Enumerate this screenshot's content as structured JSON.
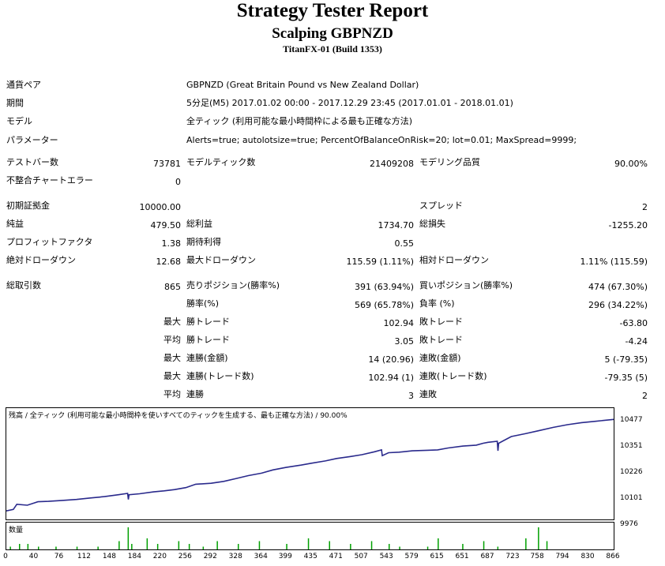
{
  "report": {
    "title": "Strategy Tester Report",
    "subtitle": "Scalping GBPNZD",
    "server": "TitanFX-01 (Build 1353)"
  },
  "info": {
    "symbol_label": "通貨ペア",
    "symbol_value": "GBPNZD (Great Britain Pound vs New Zealand Dollar)",
    "period_label": "期間",
    "period_value": "5分足(M5) 2017.01.02 00:00 - 2017.12.29 23:45 (2017.01.01 - 2018.01.01)",
    "model_label": "モデル",
    "model_value": "全ティック (利用可能な最小時間枠による最も正確な方法)",
    "params_label": "パラメーター",
    "params_value": "Alerts=true; autolotsize=true; PercentOfBalanceOnRisk=20; lot=0.01; MaxSpread=9999;"
  },
  "stats": {
    "bars_label": "テストバー数",
    "bars_value": "73781",
    "ticks_label": "モデルティック数",
    "ticks_value": "21409208",
    "quality_label": "モデリング品質",
    "quality_value": "90.00%",
    "mismatch_label": "不整合チャートエラー",
    "mismatch_value": "0",
    "deposit_label": "初期証拠金",
    "deposit_value": "10000.00",
    "spread_label": "スプレッド",
    "spread_value": "2",
    "net_label": "純益",
    "net_value": "479.50",
    "gross_profit_label": "総利益",
    "gross_profit_value": "1734.70",
    "gross_loss_label": "総損失",
    "gross_loss_value": "-1255.20",
    "pf_label": "プロフィットファクタ",
    "pf_value": "1.38",
    "expected_label": "期待利得",
    "expected_value": "0.55",
    "abs_dd_label": "絶対ドローダウン",
    "abs_dd_value": "12.68",
    "max_dd_label": "最大ドローダウン",
    "max_dd_value": "115.59 (1.11%)",
    "rel_dd_label": "相対ドローダウン",
    "rel_dd_value": "1.11% (115.59)",
    "total_label": "総取引数",
    "total_value": "865",
    "short_label": "売りポジション(勝率%)",
    "short_value": "391 (63.94%)",
    "long_label": "買いポジション(勝率%)",
    "long_value": "474 (67.30%)",
    "win_label": "勝率(%)",
    "win_value": "569 (65.78%)",
    "loss_label": "負率 (%)",
    "loss_value": "296 (34.22%)",
    "max_label": "最大",
    "avg_label": "平均",
    "largest_win_label": "勝トレード",
    "largest_win_value": "102.94",
    "largest_loss_label": "敗トレード",
    "largest_loss_value": "-63.80",
    "avg_win_label": "勝トレード",
    "avg_win_value": "3.05",
    "avg_loss_label": "敗トレード",
    "avg_loss_value": "-4.24",
    "max_cons_win_label": "連勝(金額)",
    "max_cons_win_value": "14 (20.96)",
    "max_cons_loss_label": "連敗(金額)",
    "max_cons_loss_value": "5 (-79.35)",
    "max_cons_profit_label": "連勝(トレード数)",
    "max_cons_profit_value": "102.94 (1)",
    "max_cons_lossamt_label": "連敗(トレード数)",
    "max_cons_lossamt_value": "-79.35 (5)",
    "avg_cons_win_label": "連勝",
    "avg_cons_win_value": "3",
    "avg_cons_loss_label": "連敗",
    "avg_cons_loss_value": "2"
  },
  "graph": {
    "caption": "残高 / 全ティック (利用可能な最小時間枠を使いすべてのティックを生成する、最も正確な方法) / 90.00%",
    "volume_caption": "数量",
    "line_color": "#2a2a8c",
    "volume_color": "#00a000"
  },
  "chart_data": {
    "type": "line",
    "y_ticks": [
      "10477",
      "10351",
      "10226",
      "10101",
      "9976"
    ],
    "x_ticks": [
      "0",
      "40",
      "76",
      "112",
      "148",
      "184",
      "220",
      "256",
      "292",
      "328",
      "364",
      "399",
      "435",
      "471",
      "507",
      "543",
      "579",
      "615",
      "651",
      "687",
      "723",
      "758",
      "794",
      "830",
      "866"
    ],
    "ylim": [
      9976,
      10477
    ],
    "xlim": [
      0,
      866
    ],
    "x": [
      0,
      10,
      15,
      30,
      45,
      60,
      80,
      100,
      120,
      140,
      160,
      173,
      174,
      175,
      190,
      210,
      225,
      240,
      256,
      270,
      292,
      310,
      328,
      345,
      364,
      380,
      399,
      420,
      435,
      455,
      471,
      490,
      507,
      525,
      535,
      536,
      545,
      560,
      579,
      600,
      615,
      630,
      651,
      670,
      680,
      687,
      700,
      701,
      702,
      720,
      740,
      758,
      780,
      800,
      820,
      840,
      866
    ],
    "y": [
      10000,
      10008,
      10035,
      10030,
      10048,
      10050,
      10055,
      10060,
      10068,
      10075,
      10085,
      10092,
      10060,
      10085,
      10090,
      10100,
      10105,
      10112,
      10122,
      10140,
      10145,
      10155,
      10170,
      10185,
      10198,
      10215,
      10228,
      10240,
      10250,
      10262,
      10275,
      10285,
      10295,
      10310,
      10320,
      10290,
      10305,
      10308,
      10315,
      10318,
      10320,
      10330,
      10340,
      10345,
      10355,
      10360,
      10365,
      10315,
      10355,
      10390,
      10405,
      10420,
      10438,
      10452,
      10463,
      10470,
      10480
    ],
    "volume_x": [
      5,
      18,
      30,
      45,
      70,
      100,
      130,
      160,
      173,
      178,
      200,
      215,
      245,
      260,
      280,
      300,
      330,
      360,
      399,
      430,
      460,
      490,
      520,
      545,
      560,
      600,
      615,
      650,
      680,
      700,
      740,
      758,
      770
    ],
    "volume_y": [
      1,
      2,
      2,
      1,
      1,
      1,
      1,
      3,
      8,
      2,
      4,
      2,
      3,
      2,
      1,
      3,
      2,
      3,
      2,
      4,
      3,
      2,
      3,
      2,
      1,
      1,
      4,
      2,
      3,
      1,
      4,
      8,
      3
    ]
  }
}
